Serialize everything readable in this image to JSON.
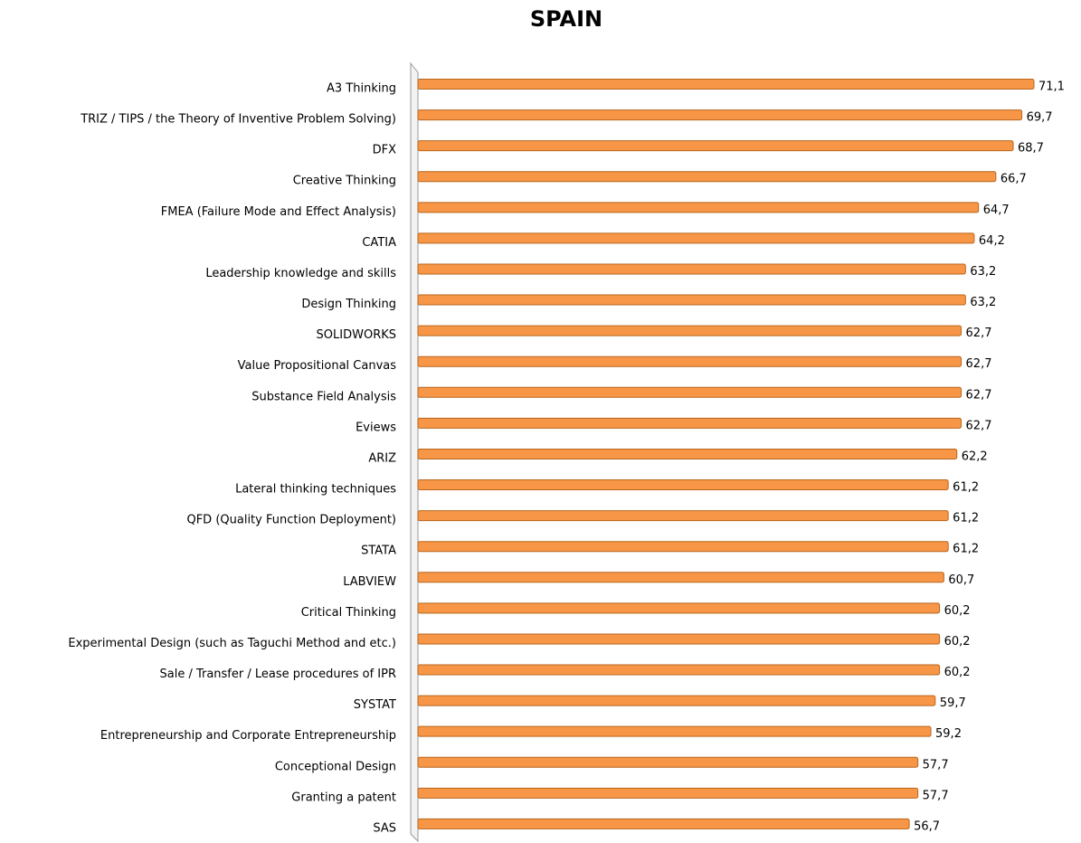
{
  "chart_data": {
    "type": "bar",
    "orientation": "horizontal",
    "title": "SPAIN",
    "categories": [
      "A3 Thinking",
      "TRIZ / TIPS / the Theory of Inventive Problem Solving)",
      "DFX",
      "Creative Thinking",
      "FMEA (Failure Mode and Effect Analysis)",
      "CATIA",
      "Leadership knowledge and skills",
      "Design Thinking",
      "SOLIDWORKS",
      "Value Propositional Canvas",
      "Substance Field Analysis",
      "Eviews",
      "ARIZ",
      "Lateral thinking techniques",
      "QFD (Quality Function Deployment)",
      "STATA",
      "LABVIEW",
      "Critical Thinking",
      "Experimental Design (such as Taguchi Method and etc.)",
      "Sale / Transfer / Lease procedures of IPR",
      "SYSTAT",
      "Entrepreneurship and Corporate Entrepreneurship",
      "Conceptional Design",
      "Granting a patent",
      "SAS"
    ],
    "values": [
      71.1,
      69.7,
      68.7,
      66.7,
      64.7,
      64.2,
      63.2,
      63.2,
      62.7,
      62.7,
      62.7,
      62.7,
      62.2,
      61.2,
      61.2,
      61.2,
      60.7,
      60.2,
      60.2,
      60.2,
      59.7,
      59.2,
      57.7,
      57.7,
      56.7
    ],
    "value_labels": [
      "71,1",
      "69,7",
      "68,7",
      "66,7",
      "64,7",
      "64,2",
      "63,2",
      "63,2",
      "62,7",
      "62,7",
      "62,7",
      "62,7",
      "62,2",
      "61,2",
      "61,2",
      "61,2",
      "60,7",
      "60,2",
      "60,2",
      "60,2",
      "59,7",
      "59,2",
      "57,7",
      "57,7",
      "56,7"
    ],
    "color": "#f79646"
  }
}
